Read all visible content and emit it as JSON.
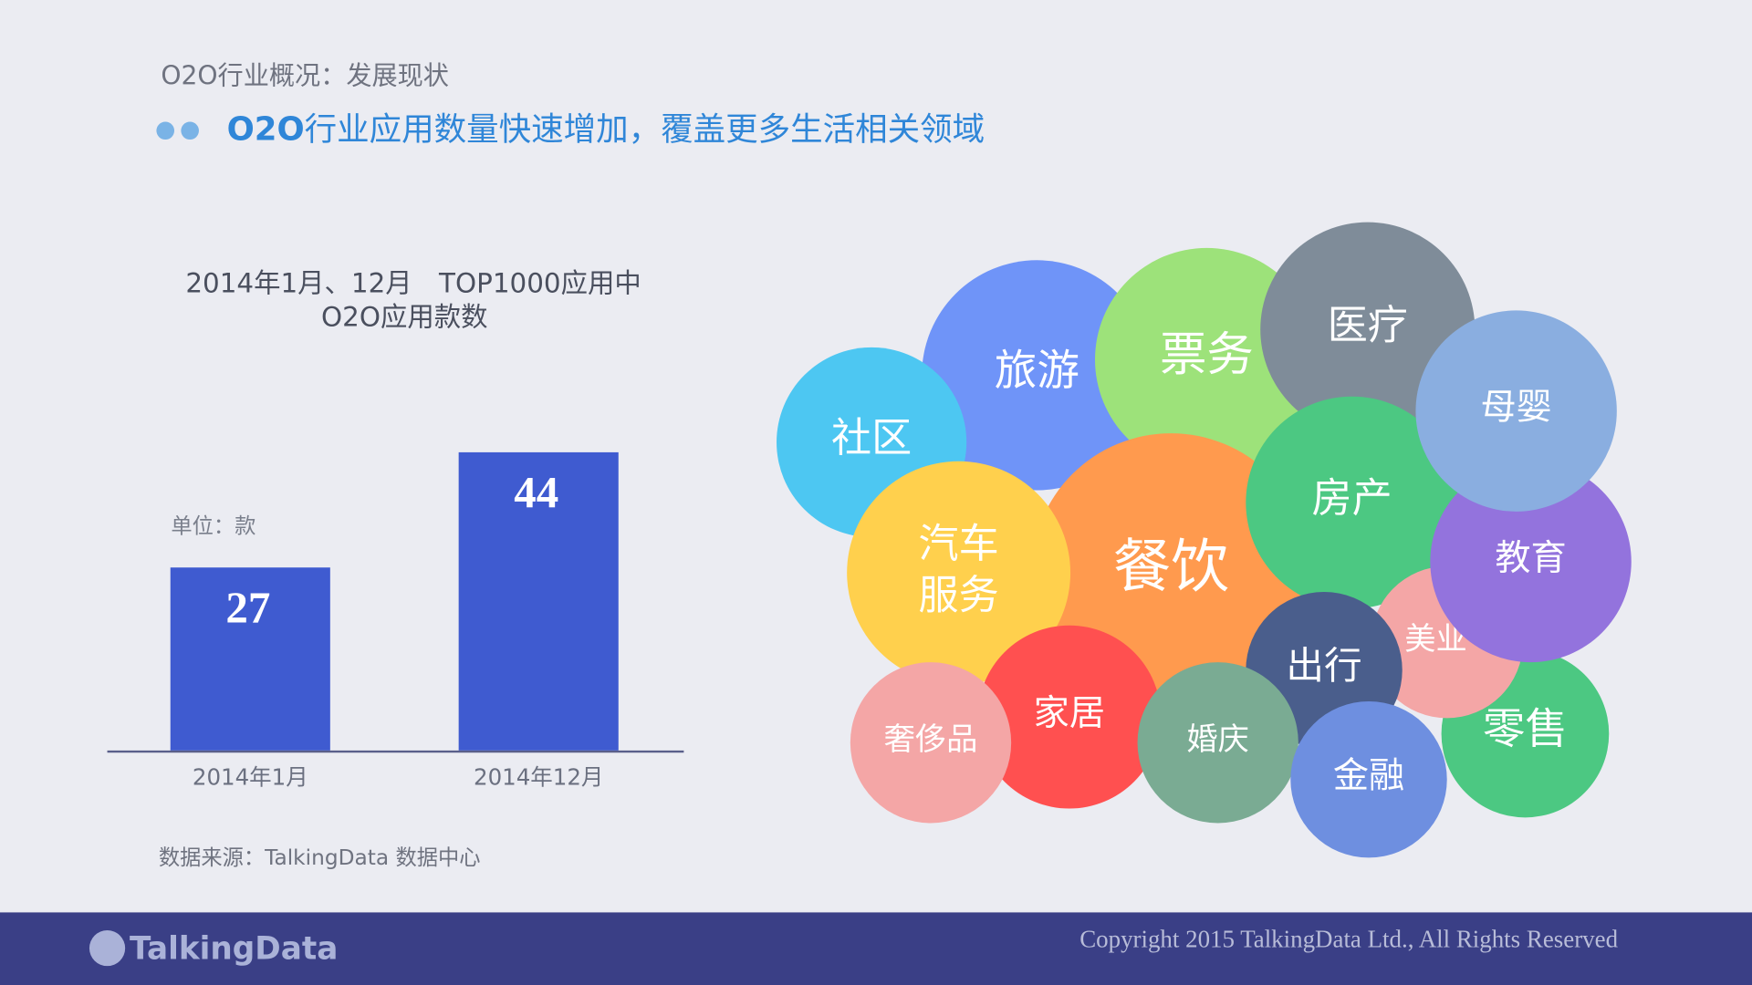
{
  "header": {
    "section": "O2O行业概况：发展现状",
    "highlight": "O2O",
    "headline": "行业应用数量快速增加，覆盖更多生活相关领域"
  },
  "chart_data": {
    "type": "bar",
    "title": "2014年1月、12月　TOP1000应用中",
    "subtitle": "O2O应用款数",
    "unit": "单位：款",
    "categories": [
      "2014年1月",
      "2014年12月"
    ],
    "values": [
      27,
      44
    ],
    "color": "#3f5bd0"
  },
  "bubbles": [
    "旅游",
    "票务",
    "医疗",
    "社区",
    "餐饮",
    "汽车服务",
    "房产",
    "零售",
    "美业",
    "教育",
    "母婴",
    "出行",
    "家居",
    "奢侈品",
    "婚庆",
    "金融"
  ],
  "source": "数据来源：TalkingData 数据中心",
  "footer": {
    "logo": "TalkingData",
    "copyright": "Copyright 2015 TalkingData Ltd., All Rights Reserved"
  }
}
